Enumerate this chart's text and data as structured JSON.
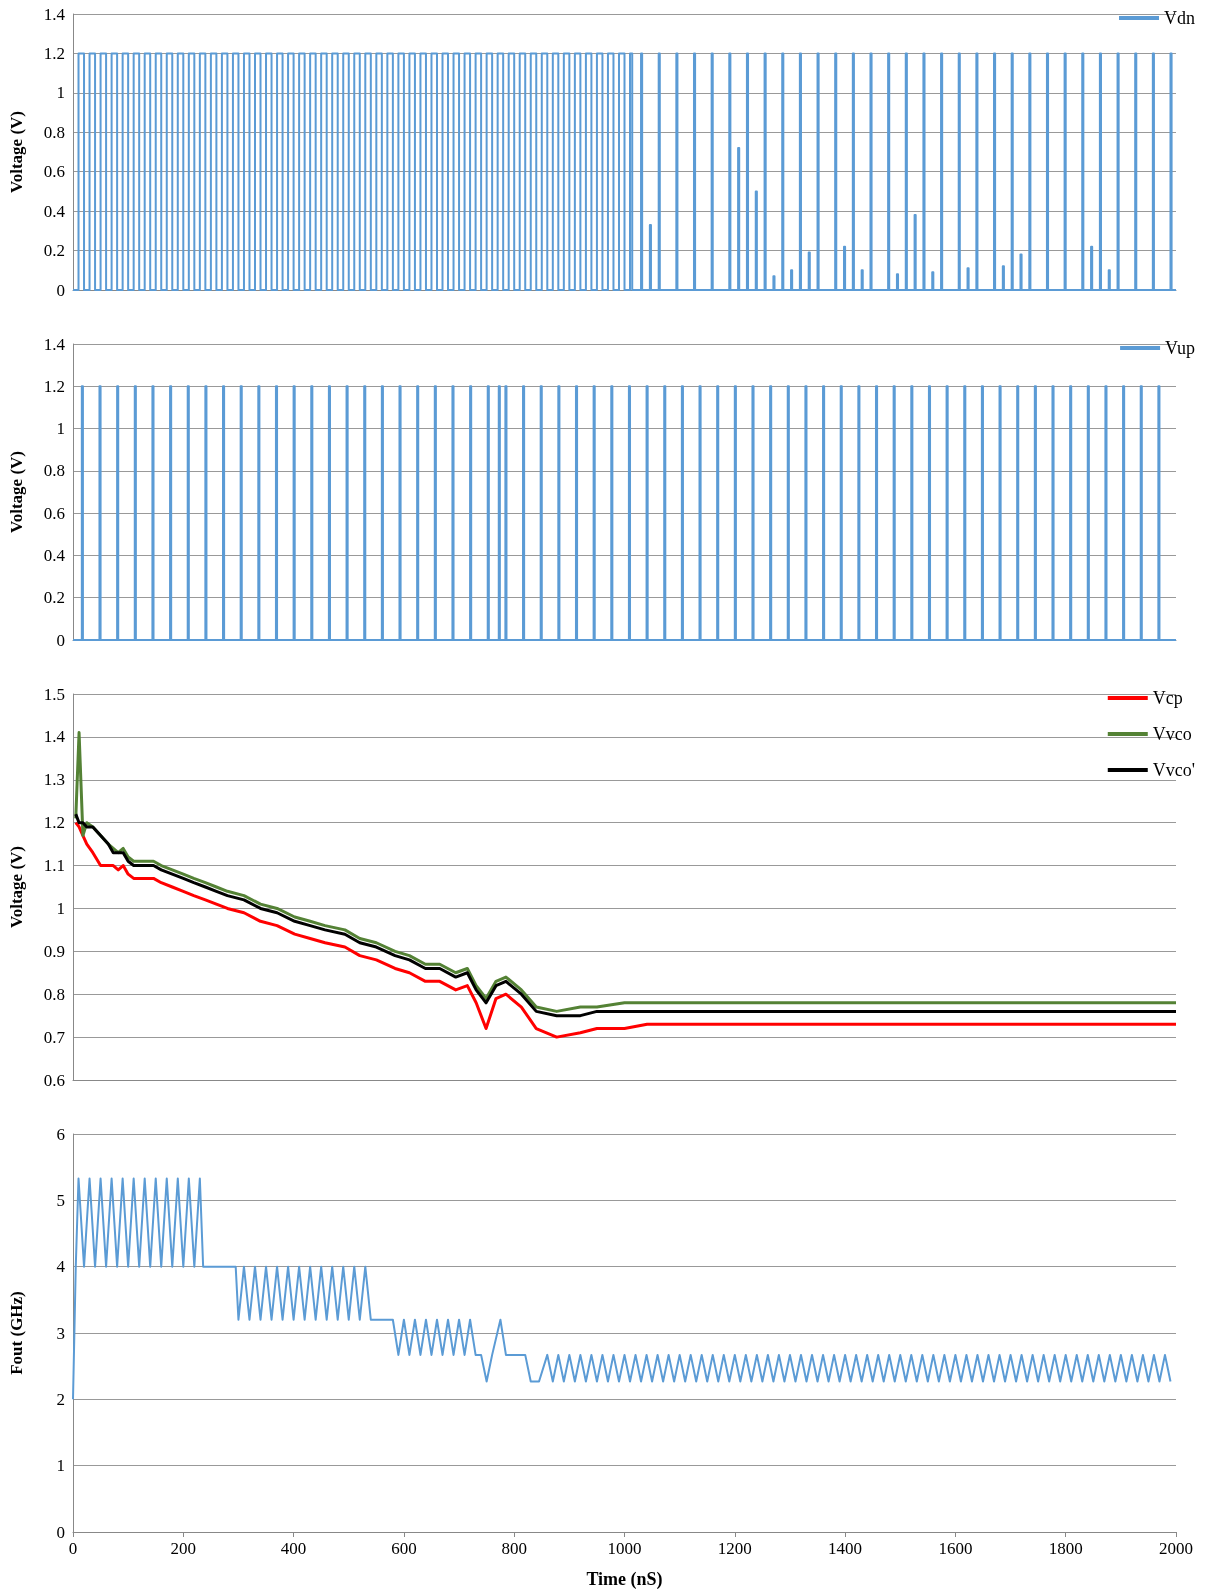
{
  "chart_data": [
    {
      "type": "step",
      "ylabel": "Voltage (V)",
      "xlim": [
        0,
        2000
      ],
      "xticks": [
        0,
        200,
        400,
        600,
        800,
        1000,
        1200,
        1400,
        1600,
        1800,
        2000
      ],
      "ylim": [
        0,
        1.4
      ],
      "yticks": [
        0,
        0.2,
        0.4,
        0.6,
        0.8,
        1,
        1.2,
        1.4
      ],
      "grid": "y",
      "legend": "top right",
      "tick_labels": "y",
      "series": [
        {
          "name": "Vdn",
          "color": "#5b9bd5",
          "x": [
            0,
            10,
            20,
            30,
            40,
            50,
            60,
            70,
            80,
            90,
            100,
            110,
            120,
            130,
            140,
            150,
            160,
            170,
            180,
            190,
            200,
            210,
            220,
            230,
            240,
            250,
            260,
            270,
            280,
            290,
            300,
            310,
            320,
            330,
            340,
            350,
            360,
            370,
            380,
            390,
            400,
            410,
            420,
            430,
            440,
            450,
            460,
            470,
            480,
            490,
            500,
            510,
            520,
            530,
            540,
            550,
            560,
            570,
            580,
            590,
            600,
            610,
            620,
            630,
            640,
            650,
            660,
            670,
            680,
            690,
            700,
            710,
            720,
            730,
            740,
            750,
            760,
            770,
            780,
            790,
            800,
            810,
            820,
            830,
            840,
            850,
            860,
            870,
            880,
            890,
            900,
            910,
            920,
            930,
            940,
            950,
            960,
            970,
            980,
            990,
            1000,
            1010,
            1014,
            1030,
            1032,
            1046,
            1048,
            1062,
            1064,
            1094,
            1096,
            1126,
            1128,
            1158,
            1160,
            1190,
            1192,
            1206,
            1208,
            1222,
            1224,
            1238,
            1240,
            1254,
            1256,
            1270,
            1272,
            1286,
            1288,
            1302,
            1304,
            1318,
            1320,
            1334,
            1336,
            1350,
            1352,
            1382,
            1384,
            1398,
            1400,
            1414,
            1416,
            1430,
            1432,
            1446,
            1448,
            1478,
            1480,
            1494,
            1496,
            1510,
            1512,
            1526,
            1528,
            1542,
            1544,
            1558,
            1560,
            1574,
            1576,
            1606,
            1608,
            1622,
            1624,
            1638,
            1640,
            1670,
            1672,
            1686,
            1688,
            1702,
            1704,
            1718,
            1720,
            1734,
            1736,
            1766,
            1768,
            1798,
            1800,
            1830,
            1832,
            1846,
            1848,
            1862,
            1864,
            1878,
            1880,
            1894,
            1896,
            1926,
            1928,
            1958,
            1960,
            1990,
            1992,
            2000
          ],
          "values": [
            0,
            1.2,
            0,
            1.2,
            0,
            1.2,
            0,
            1.2,
            0,
            1.2,
            0,
            1.2,
            0,
            1.2,
            0,
            1.2,
            0,
            1.2,
            0,
            1.2,
            0,
            1.2,
            0,
            1.2,
            0,
            1.2,
            0,
            1.2,
            0,
            1.2,
            0,
            1.2,
            0,
            1.2,
            0,
            1.2,
            0,
            1.2,
            0,
            1.2,
            0,
            1.2,
            0,
            1.2,
            0,
            1.2,
            0,
            1.2,
            0,
            1.2,
            0,
            1.2,
            0,
            1.2,
            0,
            1.2,
            0,
            1.2,
            0,
            1.2,
            0,
            1.2,
            0,
            1.2,
            0,
            1.2,
            0,
            1.2,
            0,
            1.2,
            0,
            1.2,
            0,
            1.2,
            0,
            1.2,
            0,
            1.2,
            0,
            1.2,
            0,
            1.2,
            0,
            1.2,
            0,
            1.2,
            0,
            1.2,
            0,
            1.2,
            0,
            1.2,
            0,
            1.2,
            0,
            1.2,
            0,
            1.2,
            0,
            1.2,
            0,
            1.2,
            0,
            1.2,
            0,
            0.33,
            0,
            1.2,
            0,
            1.2,
            0,
            1.2,
            0,
            1.2,
            0,
            1.2,
            0,
            0.72,
            0,
            1.2,
            0,
            0.5,
            0,
            1.2,
            0,
            0.07,
            0,
            1.2,
            0,
            0.1,
            0,
            1.2,
            0,
            0.19,
            0,
            1.2,
            0,
            1.2,
            0,
            0.22,
            0,
            1.2,
            0,
            0.1,
            0,
            1.2,
            0,
            1.2,
            0,
            0.08,
            0,
            1.2,
            0,
            0.38,
            0,
            1.2,
            0,
            0.09,
            0,
            1.2,
            0,
            1.2,
            0,
            0.11,
            0,
            1.2,
            0,
            1.2,
            0,
            0.12,
            0,
            1.2,
            0,
            0.18,
            0,
            1.2,
            0,
            1.2,
            0,
            1.2,
            0,
            1.2,
            0,
            0.22,
            0,
            1.2,
            0,
            0.1,
            0,
            1.2,
            0,
            1.2,
            0,
            1.2,
            0,
            1.2,
            0,
            0
          ]
        }
      ]
    },
    {
      "type": "step",
      "ylabel": "Voltage (V)",
      "xlim": [
        0,
        2000
      ],
      "xticks": [
        0,
        200,
        400,
        600,
        800,
        1000,
        1200,
        1400,
        1600,
        1800,
        2000
      ],
      "ylim": [
        0,
        1.4
      ],
      "yticks": [
        0,
        0.2,
        0.4,
        0.6,
        0.8,
        1,
        1.2,
        1.4
      ],
      "grid": "y",
      "legend": "top right",
      "tick_labels": "y",
      "series": [
        {
          "name": "Vup",
          "color": "#5b9bd5",
          "x": [
            0,
            16,
            18,
            48,
            50,
            80,
            82,
            112,
            114,
            144,
            146,
            176,
            178,
            208,
            210,
            240,
            242,
            272,
            274,
            304,
            306,
            336,
            338,
            368,
            370,
            400,
            402,
            432,
            434,
            464,
            466,
            496,
            498,
            528,
            530,
            560,
            562,
            592,
            594,
            624,
            626,
            656,
            658,
            688,
            690,
            720,
            722,
            752,
            754,
            772,
            774,
            784,
            786,
            816,
            818,
            848,
            850,
            880,
            882,
            912,
            914,
            944,
            946,
            976,
            978,
            1008,
            1010,
            1040,
            1042,
            1072,
            1074,
            1104,
            1106,
            1136,
            1138,
            1168,
            1170,
            1200,
            1202,
            1232,
            1234,
            1264,
            1266,
            1296,
            1298,
            1328,
            1330,
            1360,
            1362,
            1392,
            1394,
            1424,
            1426,
            1456,
            1458,
            1488,
            1490,
            1520,
            1522,
            1552,
            1554,
            1584,
            1586,
            1616,
            1618,
            1648,
            1650,
            1680,
            1682,
            1712,
            1714,
            1744,
            1746,
            1776,
            1778,
            1808,
            1810,
            1840,
            1842,
            1872,
            1874,
            1904,
            1906,
            1936,
            1938,
            1968,
            1970,
            2000
          ],
          "values": [
            0,
            1.2,
            0,
            1.2,
            0,
            1.2,
            0,
            1.2,
            0,
            1.2,
            0,
            1.2,
            0,
            1.2,
            0,
            1.2,
            0,
            1.2,
            0,
            1.2,
            0,
            1.2,
            0,
            1.2,
            0,
            1.2,
            0,
            1.2,
            0,
            1.2,
            0,
            1.2,
            0,
            1.2,
            0,
            1.2,
            0,
            1.2,
            0,
            1.2,
            0,
            1.2,
            0,
            1.2,
            0,
            1.2,
            0,
            1.2,
            0,
            1.2,
            0,
            1.2,
            0,
            1.2,
            0,
            1.2,
            0,
            1.2,
            0,
            1.2,
            0,
            1.2,
            0,
            1.2,
            0,
            1.2,
            0,
            1.2,
            0,
            1.2,
            0,
            1.2,
            0,
            1.2,
            0,
            1.2,
            0,
            1.2,
            0,
            1.2,
            0,
            1.2,
            0,
            1.2,
            0,
            1.2,
            0,
            1.2,
            0,
            1.2,
            0,
            1.2,
            0,
            1.2,
            0,
            1.2,
            0,
            1.2,
            0,
            1.2,
            0,
            1.2,
            0,
            1.2,
            0,
            1.2,
            0,
            1.2,
            0,
            1.2,
            0,
            1.2,
            0,
            1.2,
            0,
            1.2,
            0,
            1.2,
            0,
            1.2,
            0,
            1.2,
            0,
            1.2,
            0,
            1.2,
            0,
            0
          ]
        }
      ]
    },
    {
      "type": "line",
      "ylabel": "Voltage (V)",
      "xlim": [
        0,
        2000
      ],
      "xticks": [
        0,
        200,
        400,
        600,
        800,
        1000,
        1200,
        1400,
        1600,
        1800,
        2000
      ],
      "ylim": [
        0.6,
        1.5
      ],
      "yticks": [
        0.6,
        0.7,
        0.8,
        0.9,
        1,
        1.1,
        1.2,
        1.3,
        1.4,
        1.5
      ],
      "grid": "y",
      "legend": "top right",
      "tick_labels": "y",
      "x": [
        5,
        11,
        18,
        25,
        36,
        50,
        64,
        73,
        82,
        91,
        100,
        110,
        125,
        146,
        160,
        180,
        200,
        219,
        240,
        260,
        280,
        310,
        340,
        370,
        402,
        430,
        457,
        493,
        520,
        550,
        584,
        610,
        639,
        665,
        694,
        715,
        731,
        749,
        767,
        785,
        813,
        840,
        877,
        920,
        950,
        1000,
        1041,
        1200,
        1400,
        1600,
        1800,
        2000
      ],
      "series": [
        {
          "name": "Vcp",
          "color": "#ff0000",
          "values": [
            1.2,
            1.19,
            1.17,
            1.15,
            1.13,
            1.1,
            1.1,
            1.1,
            1.09,
            1.1,
            1.08,
            1.07,
            1.07,
            1.07,
            1.06,
            1.05,
            1.04,
            1.03,
            1.02,
            1.01,
            1,
            0.99,
            0.97,
            0.96,
            0.94,
            0.93,
            0.92,
            0.91,
            0.89,
            0.88,
            0.86,
            0.85,
            0.83,
            0.83,
            0.81,
            0.82,
            0.78,
            0.72,
            0.79,
            0.8,
            0.77,
            0.72,
            0.7,
            0.71,
            0.72,
            0.72,
            0.73,
            0.73,
            0.73,
            0.73,
            0.73,
            0.73
          ]
        },
        {
          "name": "Vvco",
          "color": "#548235",
          "values": [
            1.21,
            1.41,
            1.17,
            1.2,
            1.19,
            1.17,
            1.15,
            1.14,
            1.13,
            1.14,
            1.12,
            1.11,
            1.11,
            1.11,
            1.1,
            1.09,
            1.08,
            1.07,
            1.06,
            1.05,
            1.04,
            1.03,
            1.01,
            1,
            0.98,
            0.97,
            0.96,
            0.95,
            0.93,
            0.92,
            0.9,
            0.89,
            0.87,
            0.87,
            0.85,
            0.86,
            0.82,
            0.79,
            0.83,
            0.84,
            0.81,
            0.77,
            0.76,
            0.77,
            0.77,
            0.78,
            0.78,
            0.78,
            0.78,
            0.78,
            0.78,
            0.78
          ]
        },
        {
          "name": "Vvco'",
          "color": "#000000",
          "values": [
            1.22,
            1.2,
            1.2,
            1.19,
            1.19,
            1.17,
            1.15,
            1.13,
            1.13,
            1.13,
            1.11,
            1.1,
            1.1,
            1.1,
            1.09,
            1.08,
            1.07,
            1.06,
            1.05,
            1.04,
            1.03,
            1.02,
            1,
            0.99,
            0.97,
            0.96,
            0.95,
            0.94,
            0.92,
            0.91,
            0.89,
            0.88,
            0.86,
            0.86,
            0.84,
            0.85,
            0.81,
            0.78,
            0.82,
            0.83,
            0.8,
            0.76,
            0.75,
            0.75,
            0.76,
            0.76,
            0.76,
            0.76,
            0.76,
            0.76,
            0.76,
            0.76
          ]
        }
      ]
    },
    {
      "type": "line",
      "ylabel": "Fout (GHz)",
      "xlabel": "Time (nS)",
      "xlim": [
        0,
        2000
      ],
      "xticks": [
        0,
        200,
        400,
        600,
        800,
        1000,
        1200,
        1400,
        1600,
        1800,
        2000
      ],
      "ylim": [
        0,
        6
      ],
      "yticks": [
        0,
        1,
        2,
        3,
        4,
        5,
        6
      ],
      "grid": "y",
      "series": [
        {
          "color": "#5b9bd5",
          "x": [
            0,
            5,
            10,
            20,
            30,
            40,
            50,
            60,
            70,
            80,
            90,
            100,
            110,
            120,
            130,
            140,
            150,
            160,
            170,
            180,
            190,
            200,
            210,
            220,
            230,
            236,
            295,
            300,
            310,
            320,
            330,
            340,
            350,
            360,
            370,
            380,
            390,
            400,
            410,
            420,
            430,
            440,
            450,
            460,
            470,
            480,
            490,
            500,
            510,
            520,
            530,
            540,
            580,
            590,
            600,
            610,
            620,
            630,
            640,
            650,
            660,
            670,
            680,
            690,
            700,
            710,
            720,
            730,
            740,
            750,
            760,
            775,
            785,
            820,
            830,
            845,
            860,
            870,
            880,
            890,
            900,
            910,
            920,
            930,
            940,
            950,
            960,
            970,
            980,
            990,
            1000,
            1010,
            1020,
            1030,
            1040,
            1050,
            1060,
            1070,
            1080,
            1090,
            1100,
            1110,
            1120,
            1130,
            1140,
            1150,
            1160,
            1170,
            1180,
            1190,
            1200,
            1210,
            1220,
            1230,
            1240,
            1250,
            1260,
            1270,
            1280,
            1290,
            1300,
            1310,
            1320,
            1330,
            1340,
            1350,
            1360,
            1370,
            1380,
            1390,
            1400,
            1410,
            1420,
            1430,
            1440,
            1450,
            1460,
            1470,
            1480,
            1490,
            1500,
            1510,
            1520,
            1530,
            1540,
            1550,
            1560,
            1570,
            1580,
            1590,
            1600,
            1610,
            1620,
            1630,
            1640,
            1650,
            1660,
            1670,
            1680,
            1690,
            1700,
            1710,
            1720,
            1730,
            1740,
            1750,
            1760,
            1770,
            1780,
            1790,
            1800,
            1810,
            1820,
            1830,
            1840,
            1850,
            1860,
            1870,
            1880,
            1890,
            1900,
            1910,
            1920,
            1930,
            1940,
            1950,
            1960,
            1970,
            1980,
            1990
          ],
          "values": [
            2,
            4,
            5.33,
            4,
            5.33,
            4,
            5.33,
            4,
            5.33,
            4,
            5.33,
            4,
            5.33,
            4,
            5.33,
            4,
            5.33,
            4,
            5.33,
            4,
            5.33,
            4,
            5.33,
            4,
            5.33,
            4,
            4,
            3.2,
            4,
            3.2,
            4,
            3.2,
            4,
            3.2,
            4,
            3.2,
            4,
            3.2,
            4,
            3.2,
            4,
            3.2,
            4,
            3.2,
            4,
            3.2,
            4,
            3.2,
            4,
            3.2,
            4,
            3.2,
            3.2,
            2.67,
            3.2,
            2.67,
            3.2,
            2.67,
            3.2,
            2.67,
            3.2,
            2.67,
            3.2,
            2.67,
            3.2,
            2.67,
            3.2,
            2.67,
            2.67,
            2.27,
            2.67,
            3.2,
            2.67,
            2.67,
            2.27,
            2.27,
            2.67,
            2.27,
            2.67,
            2.27,
            2.67,
            2.27,
            2.67,
            2.27,
            2.67,
            2.27,
            2.67,
            2.27,
            2.67,
            2.27,
            2.67,
            2.27,
            2.67,
            2.27,
            2.67,
            2.27,
            2.67,
            2.27,
            2.67,
            2.27,
            2.67,
            2.27,
            2.67,
            2.27,
            2.67,
            2.27,
            2.67,
            2.27,
            2.67,
            2.27,
            2.67,
            2.27,
            2.67,
            2.27,
            2.67,
            2.27,
            2.67,
            2.27,
            2.67,
            2.27,
            2.67,
            2.27,
            2.67,
            2.27,
            2.67,
            2.27,
            2.67,
            2.27,
            2.67,
            2.27,
            2.67,
            2.27,
            2.67,
            2.27,
            2.67,
            2.27,
            2.67,
            2.27,
            2.67,
            2.27,
            2.67,
            2.27,
            2.67,
            2.27,
            2.67,
            2.27,
            2.67,
            2.27,
            2.67,
            2.27,
            2.67,
            2.27,
            2.67,
            2.27,
            2.67,
            2.27,
            2.67,
            2.27,
            2.67,
            2.27,
            2.67,
            2.27,
            2.67,
            2.27,
            2.67,
            2.27,
            2.67,
            2.27,
            2.67,
            2.27,
            2.67,
            2.27,
            2.67,
            2.27,
            2.67,
            2.27,
            2.67,
            2.27,
            2.67,
            2.27,
            2.67,
            2.27,
            2.67,
            2.27,
            2.67,
            2.27,
            2.67,
            2.27,
            2.67,
            2.27
          ]
        }
      ]
    }
  ]
}
